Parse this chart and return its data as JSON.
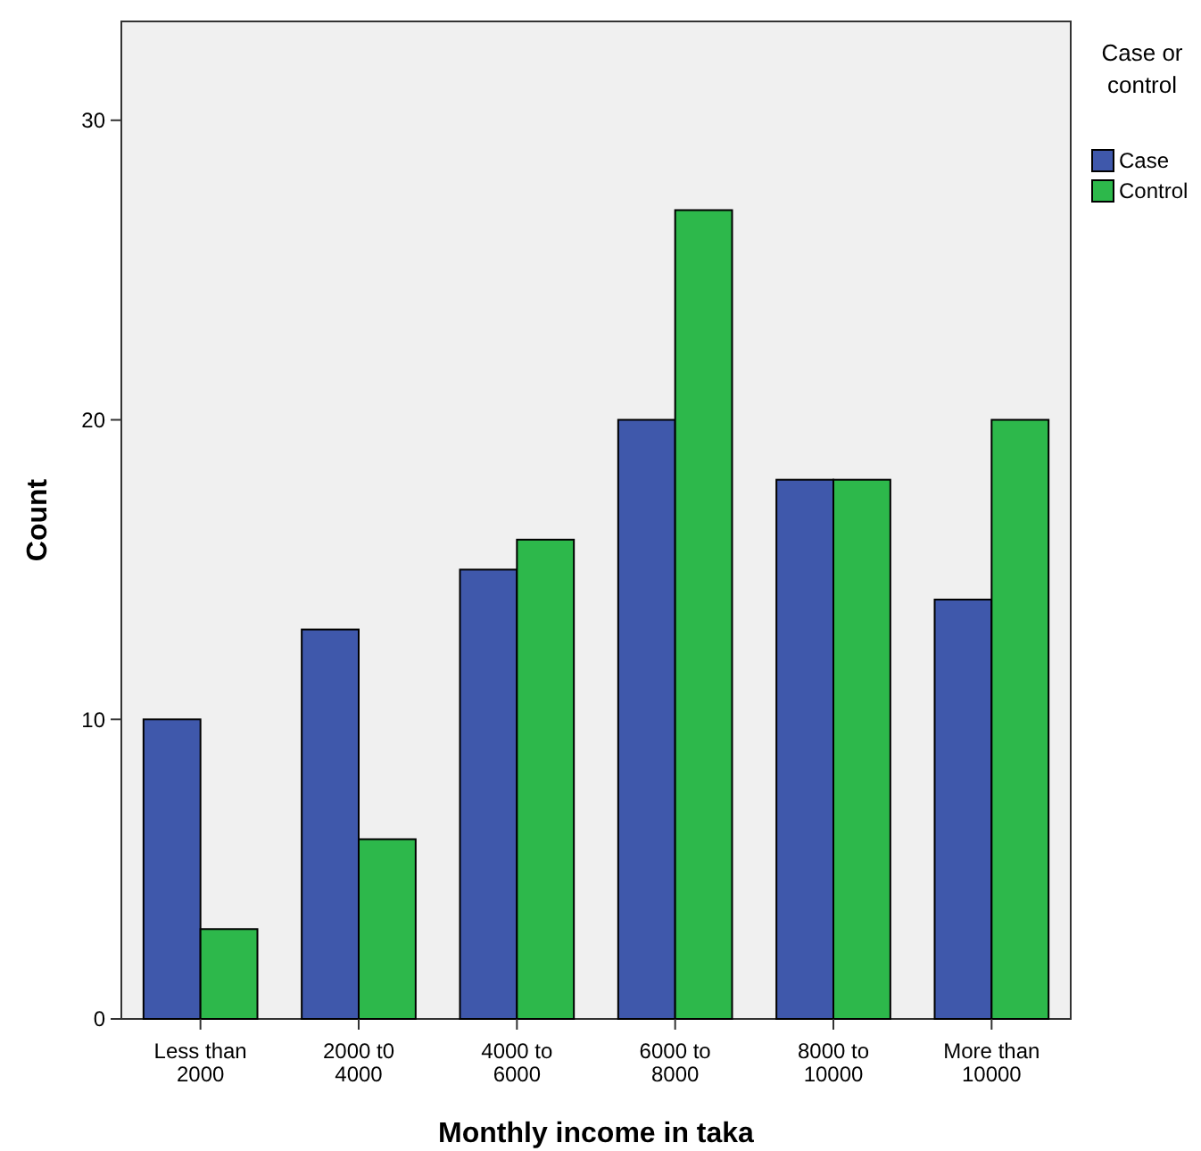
{
  "chart_data": {
    "type": "bar",
    "xlabel": "Monthly income in taka",
    "ylabel": "Count",
    "legend_title": "Case or control",
    "legend": "top right",
    "categories": [
      "Less than 2000",
      "2000 t0 4000",
      "4000 to 6000",
      "6000 to 8000",
      "8000 to 10000",
      "More than 10000"
    ],
    "series": [
      {
        "name": "Case",
        "color": "#3f58ab",
        "values": [
          10,
          13,
          15,
          20,
          18,
          14
        ]
      },
      {
        "name": "Control",
        "color": "#2db84b",
        "values": [
          3,
          6,
          16,
          27,
          18,
          20
        ]
      }
    ],
    "ylim": [
      0,
      33.3
    ],
    "yticks": [
      0,
      10,
      20,
      30
    ],
    "grid": false
  }
}
